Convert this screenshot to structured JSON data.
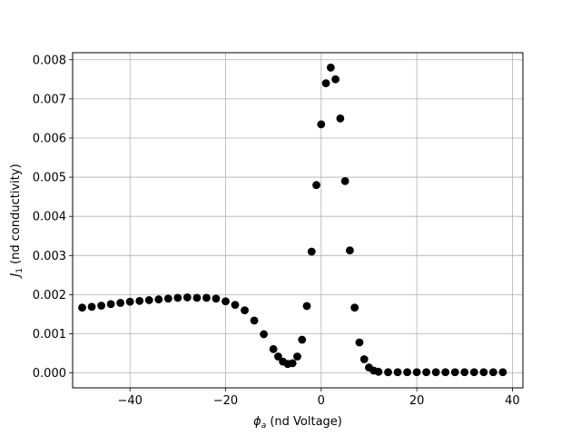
{
  "chart_data": {
    "type": "scatter",
    "xlabel_symbol": "ϕ",
    "xlabel_sub": "a",
    "xlabel_rest": " (nd Voltage)",
    "ylabel_symbol": "J",
    "ylabel_sub": "1",
    "ylabel_rest": " (nd conductivity)",
    "xlim": [
      -52,
      42.2
    ],
    "ylim": [
      -0.00038,
      0.00818
    ],
    "x_ticks": [
      -40,
      -20,
      0,
      20,
      40
    ],
    "x_tick_labels": [
      "−40",
      "−20",
      "0",
      "20",
      "40"
    ],
    "y_ticks": [
      0,
      0.001,
      0.002,
      0.003,
      0.004,
      0.005,
      0.006,
      0.007,
      0.008
    ],
    "y_tick_labels": [
      "0.000",
      "0.001",
      "0.002",
      "0.003",
      "0.004",
      "0.005",
      "0.006",
      "0.007",
      "0.008"
    ],
    "grid": true,
    "marker_color": "#000000",
    "grid_color": "#b0b0b0",
    "points": [
      [
        -50,
        0.00167
      ],
      [
        -48,
        0.00169
      ],
      [
        -46,
        0.00172
      ],
      [
        -44,
        0.00176
      ],
      [
        -42,
        0.00179
      ],
      [
        -40,
        0.00182
      ],
      [
        -38,
        0.00184
      ],
      [
        -36,
        0.00186
      ],
      [
        -34,
        0.00188
      ],
      [
        -32,
        0.0019
      ],
      [
        -30,
        0.00192
      ],
      [
        -28,
        0.00193
      ],
      [
        -26,
        0.00192
      ],
      [
        -24,
        0.00192
      ],
      [
        -22,
        0.0019
      ],
      [
        -20,
        0.00183
      ],
      [
        -18,
        0.00174
      ],
      [
        -16,
        0.0016
      ],
      [
        -14,
        0.00134
      ],
      [
        -12,
        0.00099
      ],
      [
        -10,
        0.00061
      ],
      [
        -9,
        0.00042
      ],
      [
        -8,
        0.00029
      ],
      [
        -7,
        0.00023
      ],
      [
        -6,
        0.00025
      ],
      [
        -5,
        0.00042
      ],
      [
        -4,
        0.00085
      ],
      [
        -3,
        0.00171
      ],
      [
        -2,
        0.0031
      ],
      [
        -1,
        0.0048
      ],
      [
        0,
        0.00635
      ],
      [
        1,
        0.0074
      ],
      [
        2,
        0.0078
      ],
      [
        3,
        0.0075
      ],
      [
        4,
        0.0065
      ],
      [
        5,
        0.0049
      ],
      [
        6,
        0.00313
      ],
      [
        7,
        0.00167
      ],
      [
        8,
        0.00078
      ],
      [
        9,
        0.00035
      ],
      [
        10,
        0.00014
      ],
      [
        11,
        6e-05
      ],
      [
        12,
        3e-05
      ],
      [
        14,
        2e-05
      ],
      [
        16,
        2e-05
      ],
      [
        18,
        2e-05
      ],
      [
        20,
        2e-05
      ],
      [
        22,
        2e-05
      ],
      [
        24,
        2e-05
      ],
      [
        26,
        2e-05
      ],
      [
        28,
        2e-05
      ],
      [
        30,
        2e-05
      ],
      [
        32,
        2e-05
      ],
      [
        34,
        2e-05
      ],
      [
        36,
        2e-05
      ],
      [
        38,
        2e-05
      ]
    ]
  }
}
